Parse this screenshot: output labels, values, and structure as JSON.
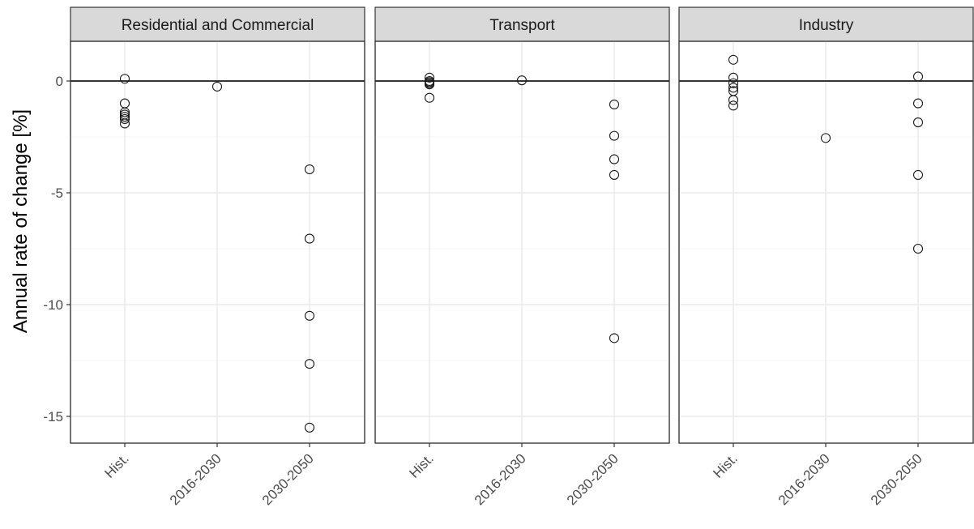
{
  "chart_data": {
    "type": "scatter",
    "facet_titles": [
      "Residential and Commercial",
      "Transport",
      "Industry"
    ],
    "categories": [
      "Hist.",
      "2016-2030",
      "2030-2050"
    ],
    "ylabel": "Annual rate of change [%]",
    "xlabel": "",
    "ylim": [
      -16.2,
      1.8
    ],
    "yticks": [
      0,
      -5,
      -10,
      -15
    ],
    "ytick_labels": [
      "0",
      "-5",
      "-10",
      "-15"
    ],
    "grid": true,
    "reference_line_y": 0,
    "panels": [
      {
        "title": "Residential and Commercial",
        "points": [
          {
            "x": "Hist.",
            "y": 0.1
          },
          {
            "x": "Hist.",
            "y": -1.0
          },
          {
            "x": "Hist.",
            "y": -1.4
          },
          {
            "x": "Hist.",
            "y": -1.5
          },
          {
            "x": "Hist.",
            "y": -1.6
          },
          {
            "x": "Hist.",
            "y": -1.7
          },
          {
            "x": "Hist.",
            "y": -1.9
          },
          {
            "x": "2016-2030",
            "y": -0.25
          },
          {
            "x": "2030-2050",
            "y": -3.95
          },
          {
            "x": "2030-2050",
            "y": -7.05
          },
          {
            "x": "2030-2050",
            "y": -10.5
          },
          {
            "x": "2030-2050",
            "y": -12.65
          },
          {
            "x": "2030-2050",
            "y": -15.5
          }
        ]
      },
      {
        "title": "Transport",
        "points": [
          {
            "x": "Hist.",
            "y": 0.15
          },
          {
            "x": "Hist.",
            "y": 0.0
          },
          {
            "x": "Hist.",
            "y": -0.05
          },
          {
            "x": "Hist.",
            "y": -0.1
          },
          {
            "x": "Hist.",
            "y": -0.15
          },
          {
            "x": "Hist.",
            "y": -0.75
          },
          {
            "x": "2016-2030",
            "y": 0.03
          },
          {
            "x": "2030-2050",
            "y": -1.05
          },
          {
            "x": "2030-2050",
            "y": -2.45
          },
          {
            "x": "2030-2050",
            "y": -3.5
          },
          {
            "x": "2030-2050",
            "y": -4.2
          },
          {
            "x": "2030-2050",
            "y": -11.5
          }
        ]
      },
      {
        "title": "Industry",
        "points": [
          {
            "x": "Hist.",
            "y": 0.95
          },
          {
            "x": "Hist.",
            "y": 0.15
          },
          {
            "x": "Hist.",
            "y": -0.1
          },
          {
            "x": "Hist.",
            "y": -0.3
          },
          {
            "x": "Hist.",
            "y": -0.45
          },
          {
            "x": "Hist.",
            "y": -0.85
          },
          {
            "x": "Hist.",
            "y": -1.1
          },
          {
            "x": "2016-2030",
            "y": -2.55
          },
          {
            "x": "2030-2050",
            "y": 0.2
          },
          {
            "x": "2030-2050",
            "y": -1.0
          },
          {
            "x": "2030-2050",
            "y": -1.85
          },
          {
            "x": "2030-2050",
            "y": -4.2
          },
          {
            "x": "2030-2050",
            "y": -7.5
          }
        ]
      }
    ]
  }
}
